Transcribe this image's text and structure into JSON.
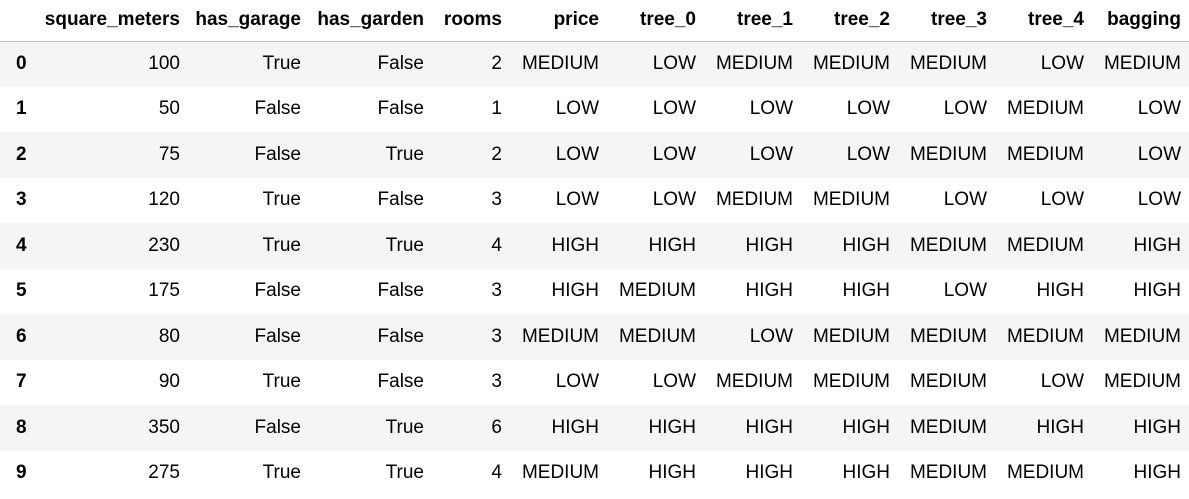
{
  "table": {
    "columns": [
      "",
      "square_meters",
      "has_garage",
      "has_garden",
      "rooms",
      "price",
      "tree_0",
      "tree_1",
      "tree_2",
      "tree_3",
      "tree_4",
      "bagging"
    ],
    "rows": [
      {
        "index": "0",
        "cells": [
          "100",
          "True",
          "False",
          "2",
          "MEDIUM",
          "LOW",
          "MEDIUM",
          "MEDIUM",
          "MEDIUM",
          "LOW",
          "MEDIUM"
        ]
      },
      {
        "index": "1",
        "cells": [
          "50",
          "False",
          "False",
          "1",
          "LOW",
          "LOW",
          "LOW",
          "LOW",
          "LOW",
          "MEDIUM",
          "LOW"
        ]
      },
      {
        "index": "2",
        "cells": [
          "75",
          "False",
          "True",
          "2",
          "LOW",
          "LOW",
          "LOW",
          "LOW",
          "MEDIUM",
          "MEDIUM",
          "LOW"
        ]
      },
      {
        "index": "3",
        "cells": [
          "120",
          "True",
          "False",
          "3",
          "LOW",
          "LOW",
          "MEDIUM",
          "MEDIUM",
          "LOW",
          "LOW",
          "LOW"
        ]
      },
      {
        "index": "4",
        "cells": [
          "230",
          "True",
          "True",
          "4",
          "HIGH",
          "HIGH",
          "HIGH",
          "HIGH",
          "MEDIUM",
          "MEDIUM",
          "HIGH"
        ]
      },
      {
        "index": "5",
        "cells": [
          "175",
          "False",
          "False",
          "3",
          "HIGH",
          "MEDIUM",
          "HIGH",
          "HIGH",
          "LOW",
          "HIGH",
          "HIGH"
        ]
      },
      {
        "index": "6",
        "cells": [
          "80",
          "False",
          "False",
          "3",
          "MEDIUM",
          "MEDIUM",
          "LOW",
          "MEDIUM",
          "MEDIUM",
          "MEDIUM",
          "MEDIUM"
        ]
      },
      {
        "index": "7",
        "cells": [
          "90",
          "True",
          "False",
          "3",
          "LOW",
          "LOW",
          "MEDIUM",
          "MEDIUM",
          "MEDIUM",
          "LOW",
          "MEDIUM"
        ]
      },
      {
        "index": "8",
        "cells": [
          "350",
          "False",
          "True",
          "6",
          "HIGH",
          "HIGH",
          "HIGH",
          "HIGH",
          "MEDIUM",
          "HIGH",
          "HIGH"
        ]
      },
      {
        "index": "9",
        "cells": [
          "275",
          "True",
          "True",
          "4",
          "MEDIUM",
          "HIGH",
          "HIGH",
          "HIGH",
          "MEDIUM",
          "MEDIUM",
          "HIGH"
        ]
      }
    ]
  }
}
